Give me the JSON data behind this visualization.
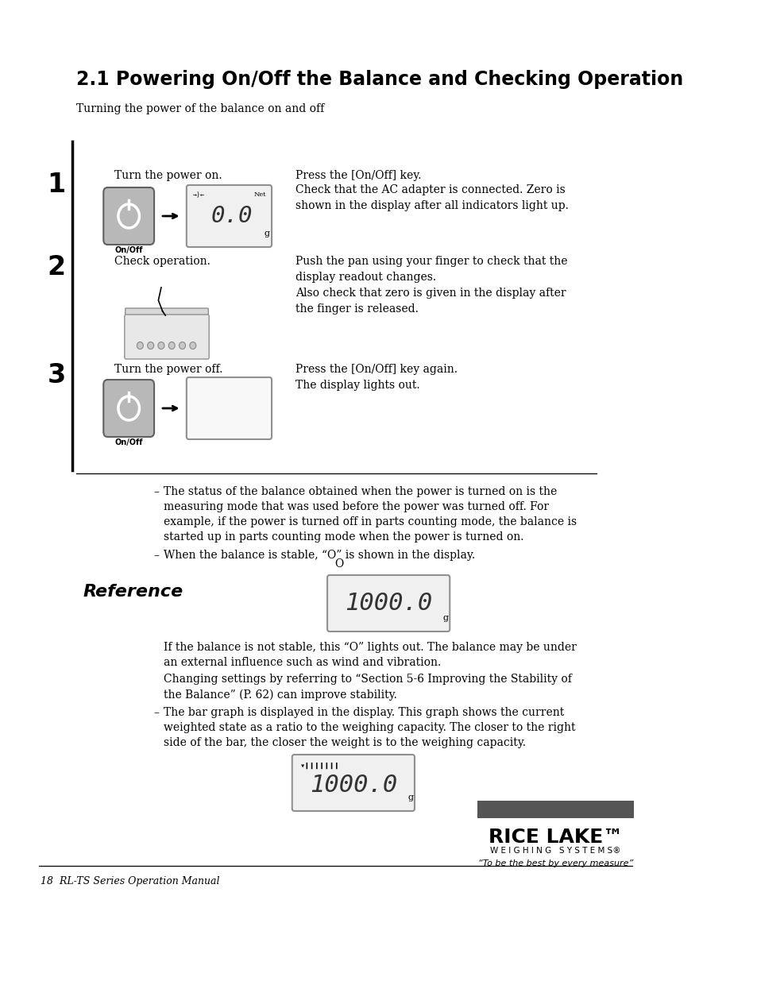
{
  "title": "2.1 Powering On/Off the Balance and Checking Operation",
  "subtitle": "Turning the power of the balance on and off",
  "step1_left": "Turn the power on.",
  "step1_right_line1": "Press the [On/Off] key.",
  "step1_right_line2": "Check that the AC adapter is connected. Zero is\nshown in the display after all indicators light up.",
  "step2_left": "Check operation.",
  "step2_right_line1": "Push the pan using your finger to check that the\ndisplay readout changes.",
  "step2_right_line2": "Also check that zero is given in the display after\nthe finger is released.",
  "step3_left": "Turn the power off.",
  "step3_right_line1": "Press the [On/Off] key again.",
  "step3_right_line2": "The display lights out.",
  "ref_bullet1": "The status of the balance obtained when the power is turned on is the\nmeasuring mode that was used before the power was turned off. For\nexample, if the power is turned off in parts counting mode, the balance is\nstarted up in parts counting mode when the power is turned on.",
  "ref_bullet2": "When the balance is stable, “O” is shown in the display.",
  "ref_header": "Reference",
  "ref_body1": "If the balance is not stable, this “O” lights out. The balance may be under\nan external influence such as wind and vibration.",
  "ref_body2": "Changing settings by referring to “Section 5-6 Improving the Stability of\nthe Balance” (P. 62) can improve stability.",
  "ref_bullet3": "The bar graph is displayed in the display. This graph shows the current\nweighted state as a ratio to the weighing capacity. The closer to the right\nside of the bar, the closer the weight is to the weighing capacity.",
  "footer_left": "18  RL-TS Series Operation Manual",
  "bg_color": "#ffffff",
  "text_color": "#000000",
  "display_color": "#f5f5f5",
  "button_color": "#a0a0a0",
  "logo_bar_color": "#555555",
  "step_line_color": "#000000"
}
